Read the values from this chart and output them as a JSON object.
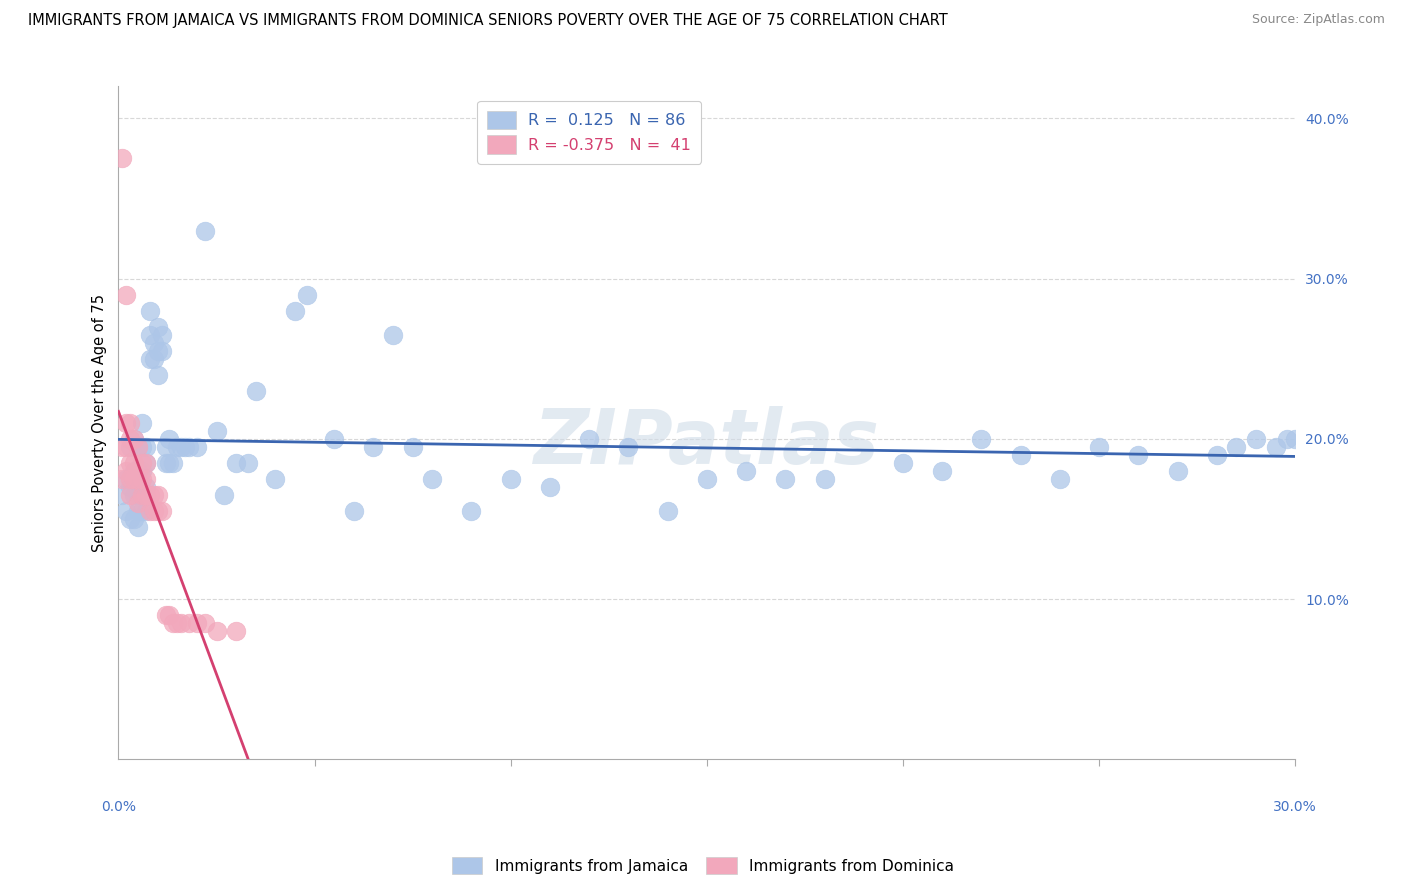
{
  "title": "IMMIGRANTS FROM JAMAICA VS IMMIGRANTS FROM DOMINICA SENIORS POVERTY OVER THE AGE OF 75 CORRELATION CHART",
  "source": "Source: ZipAtlas.com",
  "ylabel": "Seniors Poverty Over the Age of 75",
  "yticks": [
    0.1,
    0.2,
    0.3,
    0.4
  ],
  "ytick_labels": [
    "10.0%",
    "20.0%",
    "30.0%",
    "40.0%"
  ],
  "xlim": [
    0.0,
    0.3
  ],
  "ylim": [
    0.0,
    0.42
  ],
  "jamaica_color": "#adc6e8",
  "dominica_color": "#f2a8bc",
  "jamaica_line_color": "#3a65b0",
  "dominica_line_color": "#d44070",
  "jamaica_R": 0.125,
  "jamaica_N": 86,
  "dominica_R": -0.375,
  "dominica_N": 41,
  "watermark": "ZIPatlas",
  "jamaica_scatter_x": [
    0.001,
    0.002,
    0.002,
    0.003,
    0.003,
    0.003,
    0.004,
    0.004,
    0.004,
    0.004,
    0.005,
    0.005,
    0.005,
    0.005,
    0.005,
    0.006,
    0.006,
    0.006,
    0.006,
    0.006,
    0.007,
    0.007,
    0.007,
    0.007,
    0.008,
    0.008,
    0.008,
    0.009,
    0.009,
    0.01,
    0.01,
    0.01,
    0.011,
    0.011,
    0.012,
    0.012,
    0.013,
    0.013,
    0.014,
    0.015,
    0.016,
    0.017,
    0.018,
    0.02,
    0.022,
    0.025,
    0.027,
    0.03,
    0.033,
    0.035,
    0.04,
    0.045,
    0.048,
    0.055,
    0.06,
    0.065,
    0.07,
    0.075,
    0.08,
    0.09,
    0.1,
    0.11,
    0.12,
    0.13,
    0.14,
    0.15,
    0.16,
    0.17,
    0.18,
    0.2,
    0.21,
    0.22,
    0.23,
    0.24,
    0.25,
    0.26,
    0.27,
    0.28,
    0.285,
    0.29,
    0.295,
    0.298,
    0.3,
    0.305,
    0.31,
    0.32
  ],
  "jamaica_scatter_y": [
    0.165,
    0.175,
    0.155,
    0.17,
    0.195,
    0.15,
    0.2,
    0.18,
    0.165,
    0.15,
    0.195,
    0.18,
    0.165,
    0.155,
    0.145,
    0.21,
    0.195,
    0.18,
    0.165,
    0.155,
    0.195,
    0.185,
    0.17,
    0.155,
    0.28,
    0.265,
    0.25,
    0.26,
    0.25,
    0.27,
    0.255,
    0.24,
    0.265,
    0.255,
    0.195,
    0.185,
    0.2,
    0.185,
    0.185,
    0.195,
    0.195,
    0.195,
    0.195,
    0.195,
    0.33,
    0.205,
    0.165,
    0.185,
    0.185,
    0.23,
    0.175,
    0.28,
    0.29,
    0.2,
    0.155,
    0.195,
    0.265,
    0.195,
    0.175,
    0.155,
    0.175,
    0.17,
    0.2,
    0.195,
    0.155,
    0.175,
    0.18,
    0.175,
    0.175,
    0.185,
    0.18,
    0.2,
    0.19,
    0.175,
    0.195,
    0.19,
    0.18,
    0.19,
    0.195,
    0.2,
    0.195,
    0.2,
    0.2,
    0.2,
    0.195,
    0.2
  ],
  "dominica_scatter_x": [
    0.001,
    0.001,
    0.001,
    0.002,
    0.002,
    0.002,
    0.002,
    0.003,
    0.003,
    0.003,
    0.003,
    0.003,
    0.004,
    0.004,
    0.004,
    0.005,
    0.005,
    0.005,
    0.006,
    0.006,
    0.006,
    0.007,
    0.007,
    0.007,
    0.008,
    0.008,
    0.009,
    0.009,
    0.01,
    0.01,
    0.011,
    0.012,
    0.013,
    0.014,
    0.015,
    0.016,
    0.018,
    0.02,
    0.022,
    0.025,
    0.03
  ],
  "dominica_scatter_y": [
    0.375,
    0.195,
    0.175,
    0.29,
    0.21,
    0.195,
    0.18,
    0.21,
    0.2,
    0.185,
    0.175,
    0.165,
    0.2,
    0.185,
    0.175,
    0.195,
    0.175,
    0.16,
    0.185,
    0.175,
    0.165,
    0.185,
    0.175,
    0.165,
    0.165,
    0.155,
    0.165,
    0.155,
    0.165,
    0.155,
    0.155,
    0.09,
    0.09,
    0.085,
    0.085,
    0.085,
    0.085,
    0.085,
    0.085,
    0.08,
    0.08
  ],
  "background_color": "#ffffff",
  "grid_color": "#d8d8d8"
}
